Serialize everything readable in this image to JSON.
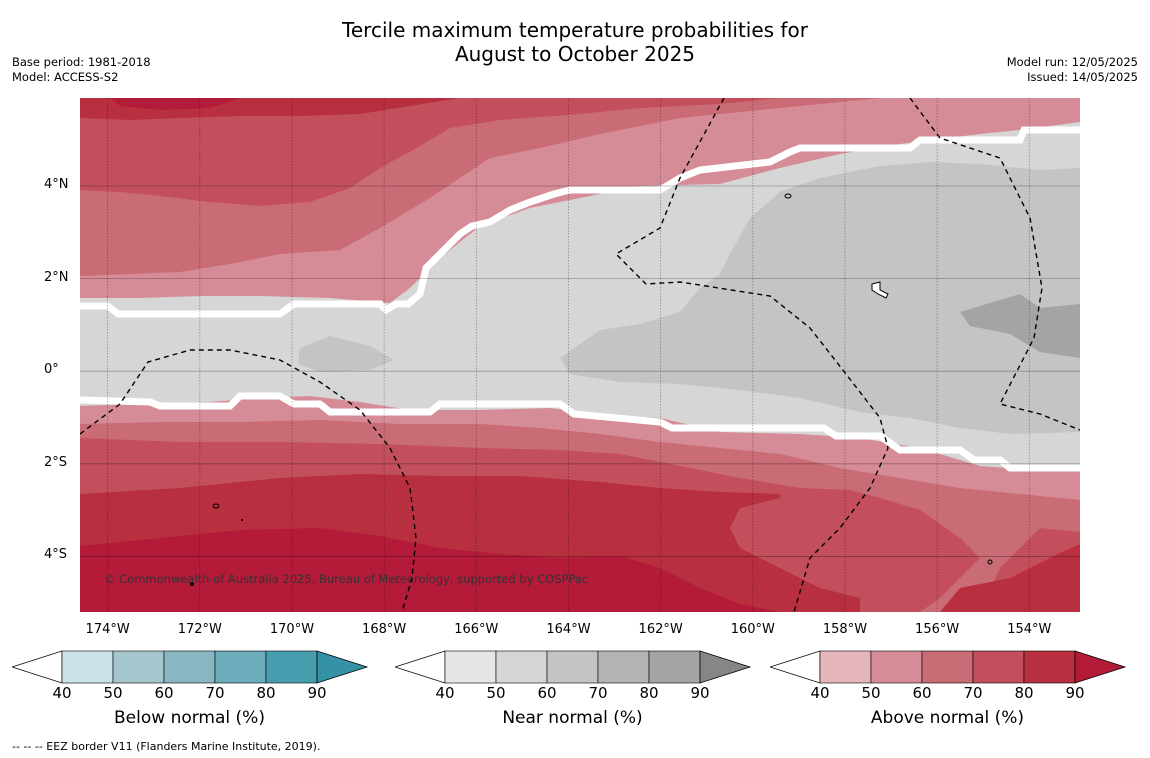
{
  "title_line1": "Tercile maximum temperature probabilities for",
  "title_line2": "August to October 2025",
  "meta_left": [
    "Base period: 1981-2018",
    "Model: ACCESS-S2"
  ],
  "meta_right": [
    "Model run: 12/05/2025",
    "Issued: 14/05/2025"
  ],
  "map": {
    "lon_range": [
      -174.6,
      -152.9
    ],
    "lat_range": [
      -5.2,
      5.9
    ],
    "lat_ticks": [
      {
        "value": 4,
        "label": "4°N"
      },
      {
        "value": 2,
        "label": "2°N"
      },
      {
        "value": 0,
        "label": "0°"
      },
      {
        "value": -2,
        "label": "2°S"
      },
      {
        "value": -4,
        "label": "4°S"
      }
    ],
    "lon_ticks": [
      {
        "value": -174,
        "label": "174°W"
      },
      {
        "value": -172,
        "label": "172°W"
      },
      {
        "value": -170,
        "label": "170°W"
      },
      {
        "value": -168,
        "label": "168°W"
      },
      {
        "value": -166,
        "label": "166°W"
      },
      {
        "value": -164,
        "label": "164°W"
      },
      {
        "value": -162,
        "label": "162°W"
      },
      {
        "value": -160,
        "label": "160°W"
      },
      {
        "value": -158,
        "label": "158°W"
      },
      {
        "value": -156,
        "label": "156°W"
      },
      {
        "value": -154,
        "label": "154°W"
      }
    ],
    "copyright": "© Commonwealth of Australia 2025, Bureau of Meteorology, supported by COSPPac"
  },
  "colorbars": [
    {
      "label": "Below normal (%)",
      "colors": [
        "#c9e1e8",
        "#a5c6cc",
        "#88b6c3",
        "#6babba",
        "#469dae",
        "#3592a6"
      ],
      "ticks": [
        "40",
        "50",
        "60",
        "70",
        "80",
        "90"
      ]
    },
    {
      "label": "Near normal (%)",
      "colors": [
        "#e6e6e6",
        "#d6d6d6",
        "#c4c4c4",
        "#b4b4b4",
        "#a4a4a4",
        "#868686"
      ],
      "ticks": [
        "40",
        "50",
        "60",
        "70",
        "80",
        "90"
      ]
    },
    {
      "label": "Above normal (%)",
      "colors": [
        "#e4b6bb",
        "#d68c96",
        "#ca6c75",
        "#c24f5b",
        "#b8303f",
        "#b31b38"
      ],
      "ticks": [
        "40",
        "50",
        "60",
        "70",
        "80",
        "90"
      ]
    }
  ],
  "footnote": "-- -- -- EEZ border V11 (Flanders Marine Institute, 2019)."
}
